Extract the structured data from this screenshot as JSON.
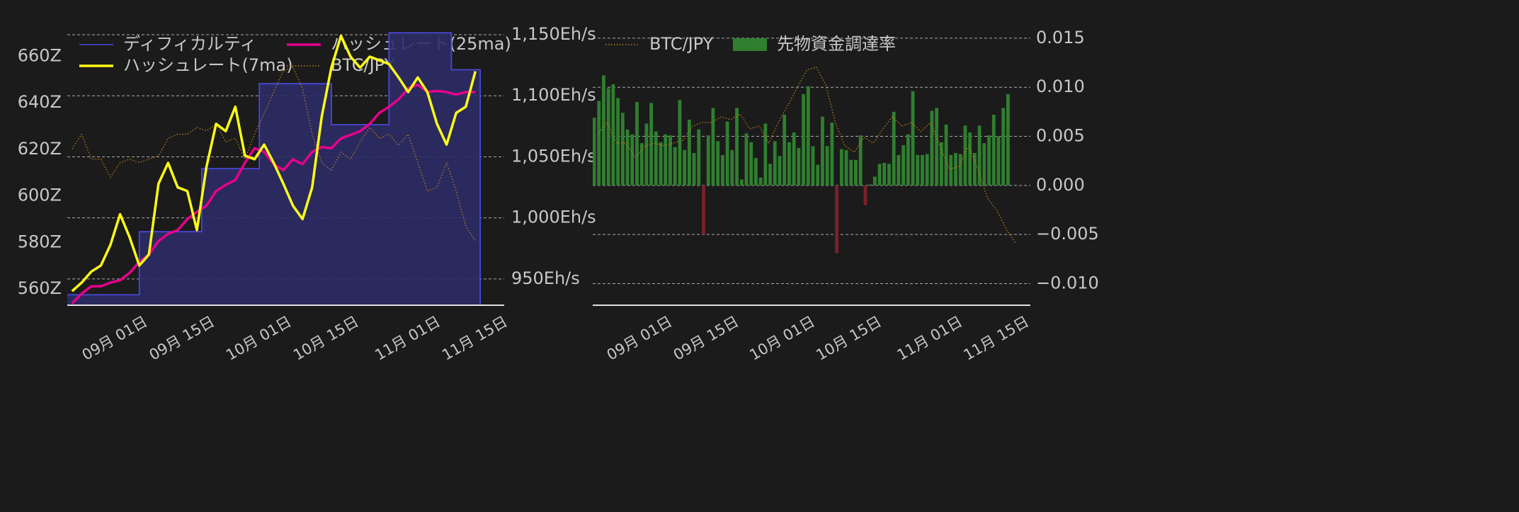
{
  "chart_data": [
    {
      "type": "line",
      "legend": "upper left",
      "legend_columns": 2,
      "grid": true,
      "xlim": [
        "08-17",
        "11-16"
      ],
      "xticks": [
        {
          "value": "09-01",
          "label": "09月 01日"
        },
        {
          "value": "09-15",
          "label": "09月 15日"
        },
        {
          "value": "10-01",
          "label": "10月 01日"
        },
        {
          "value": "10-15",
          "label": "10月 15日"
        },
        {
          "value": "11-01",
          "label": "11月 01日"
        },
        {
          "value": "11-15",
          "label": "11月 15日"
        }
      ],
      "ylim": [
        553,
        672
      ],
      "yticks": [
        {
          "value": 560,
          "label": "560Z"
        },
        {
          "value": 580,
          "label": "580Z"
        },
        {
          "value": 600,
          "label": "600Z"
        },
        {
          "value": 620,
          "label": "620Z"
        },
        {
          "value": 640,
          "label": "640Z"
        },
        {
          "value": 660,
          "label": "660Z"
        }
      ],
      "y2lim": [
        928.5,
        1155.2
      ],
      "y2ticks": [
        {
          "value": 950,
          "label": "950Eh/s"
        },
        {
          "value": 1000,
          "label": "1,000Eh/s"
        },
        {
          "value": 1050,
          "label": "1,050Eh/s"
        },
        {
          "value": 1100,
          "label": "1,100Eh/s"
        },
        {
          "value": 1150,
          "label": "1,150Eh/s"
        }
      ],
      "y3lim": [
        14.5,
        18.5
      ],
      "x": [
        "08-18",
        "08-20",
        "08-22",
        "08-24",
        "08-26",
        "08-28",
        "08-30",
        "09-01",
        "09-03",
        "09-05",
        "09-07",
        "09-09",
        "09-11",
        "09-13",
        "09-15",
        "09-17",
        "09-19",
        "09-21",
        "09-23",
        "09-25",
        "09-27",
        "09-29",
        "10-01",
        "10-03",
        "10-05",
        "10-07",
        "10-09",
        "10-11",
        "10-13",
        "10-15",
        "10-17",
        "10-19",
        "10-21",
        "10-23",
        "10-25",
        "10-27",
        "10-29",
        "10-31",
        "11-02",
        "11-04",
        "11-06",
        "11-08",
        "11-10"
      ],
      "series": [
        {
          "name": "ディフィカルティ",
          "type": "step-area",
          "color": "#4848d8",
          "fill": "#2c2c66",
          "x": [
            "08-17",
            "09-01",
            "09-14",
            "09-26",
            "10-11",
            "10-23",
            "11-05",
            "11-11"
          ],
          "values": [
            557.5,
            584.6,
            611.7,
            648.2,
            630.6,
            670.1,
            654.2,
            654.2
          ]
        },
        {
          "name": "ハッシュレート(7ma)",
          "color": "#ffff14",
          "axis": "y2",
          "values": [
            940,
            947,
            956,
            961,
            978,
            1003,
            984,
            961,
            970,
            1028,
            1045,
            1025,
            1022,
            990,
            1042,
            1077,
            1071,
            1091,
            1051,
            1048,
            1060,
            1045,
            1028,
            1010,
            999,
            1025,
            1083,
            1123,
            1149,
            1132,
            1123,
            1132,
            1129,
            1126,
            1115,
            1103,
            1115,
            1103,
            1077,
            1060,
            1086,
            1091,
            1120
          ]
        },
        {
          "name": "ハッシュレート(25ma)",
          "color": "#e8008c",
          "axis": "y2",
          "values": [
            930,
            938,
            944,
            944,
            947,
            949,
            955,
            964,
            970,
            981,
            987,
            990,
            999,
            1005,
            1010,
            1022,
            1027,
            1031,
            1045,
            1057,
            1054,
            1044,
            1039,
            1048,
            1044,
            1054,
            1058,
            1057,
            1065,
            1068,
            1071,
            1077,
            1086,
            1091,
            1097,
            1106,
            1109,
            1103,
            1104,
            1103,
            1101,
            1103,
            1103
          ]
        },
        {
          "name": "BTC/JPY",
          "color": "#c0801a",
          "axis": "y3",
          "linestyle": "dotted",
          "values": [
            16.76,
            16.97,
            16.61,
            16.61,
            16.35,
            16.56,
            16.61,
            16.56,
            16.61,
            16.66,
            16.91,
            16.97,
            16.97,
            17.07,
            17.02,
            17.12,
            16.86,
            16.91,
            16.61,
            16.97,
            17.27,
            17.58,
            17.89,
            17.94,
            17.63,
            16.97,
            16.56,
            16.45,
            16.71,
            16.61,
            16.86,
            17.07,
            16.91,
            16.97,
            16.81,
            16.97,
            16.56,
            16.15,
            16.2,
            16.56,
            16.15,
            15.64,
            15.43
          ]
        }
      ]
    },
    {
      "type": "bar",
      "legend": "upper left",
      "legend_columns": 2,
      "grid": true,
      "y_side": "right",
      "xlim": [
        "08-17",
        "11-17"
      ],
      "xticks": [
        {
          "value": "09-01",
          "label": "09月 01日"
        },
        {
          "value": "09-15",
          "label": "09月 15日"
        },
        {
          "value": "10-01",
          "label": "10月 01日"
        },
        {
          "value": "10-15",
          "label": "10月 15日"
        },
        {
          "value": "11-01",
          "label": "11月 01日"
        },
        {
          "value": "11-15",
          "label": "11月 15日"
        }
      ],
      "ylim": [
        -0.0122,
        0.016
      ],
      "yticks": [
        {
          "value": -0.01,
          "label": "−0.010"
        },
        {
          "value": -0.005,
          "label": "−0.005"
        },
        {
          "value": 0,
          "label": "0.000"
        },
        {
          "value": 0.005,
          "label": "0.005"
        },
        {
          "value": 0.01,
          "label": "0.010"
        },
        0.015
      ],
      "y3lim": [
        13.77,
        18.62
      ],
      "x": [
        "08-17",
        "08-18",
        "08-19",
        "08-20",
        "08-21",
        "08-22",
        "08-23",
        "08-24",
        "08-25",
        "08-26",
        "08-27",
        "08-28",
        "08-29",
        "08-30",
        "08-31",
        "09-01",
        "09-02",
        "09-03",
        "09-04",
        "09-05",
        "09-06",
        "09-07",
        "09-08",
        "09-09",
        "09-10",
        "09-11",
        "09-12",
        "09-13",
        "09-14",
        "09-15",
        "09-16",
        "09-17",
        "09-18",
        "09-19",
        "09-20",
        "09-21",
        "09-22",
        "09-23",
        "09-24",
        "09-25",
        "09-26",
        "09-27",
        "09-28",
        "09-29",
        "09-30",
        "10-01",
        "10-02",
        "10-03",
        "10-04",
        "10-05",
        "10-06",
        "10-07",
        "10-08",
        "10-09",
        "10-10",
        "10-11",
        "10-12",
        "10-13",
        "10-14",
        "10-15",
        "10-16",
        "10-17",
        "10-18",
        "10-19",
        "10-20",
        "10-21",
        "10-22",
        "10-23",
        "10-24",
        "10-25",
        "10-26",
        "10-27",
        "10-28",
        "10-29",
        "10-30",
        "10-31",
        "11-01",
        "11-02",
        "11-03",
        "11-04",
        "11-05",
        "11-06",
        "11-07",
        "11-08",
        "11-09",
        "11-10",
        "11-11",
        "11-12"
      ],
      "series": [
        {
          "name": "BTC/JPY",
          "type": "line",
          "color": "#c0801a",
          "axis": "y3",
          "linestyle": "dotted",
          "x": [
            "08-18",
            "08-20",
            "08-22",
            "08-24",
            "08-26",
            "08-28",
            "08-30",
            "09-01",
            "09-03",
            "09-05",
            "09-07",
            "09-09",
            "09-11",
            "09-13",
            "09-15",
            "09-17",
            "09-19",
            "09-21",
            "09-23",
            "09-25",
            "09-27",
            "09-29",
            "10-01",
            "10-03",
            "10-05",
            "10-07",
            "10-09",
            "10-11",
            "10-13",
            "10-15",
            "10-17",
            "10-19",
            "10-21",
            "10-23",
            "10-25",
            "10-27",
            "10-29",
            "10-31",
            "11-02",
            "11-04",
            "11-06",
            "11-08",
            "11-10",
            "11-12",
            "11-14"
          ],
          "values": [
            16.76,
            16.97,
            16.61,
            16.61,
            16.35,
            16.56,
            16.61,
            16.56,
            16.61,
            16.66,
            16.91,
            16.97,
            16.97,
            17.07,
            17.02,
            17.12,
            16.86,
            16.91,
            16.61,
            16.97,
            17.27,
            17.58,
            17.89,
            17.94,
            17.63,
            16.97,
            16.56,
            16.45,
            16.71,
            16.61,
            16.86,
            17.07,
            16.91,
            16.97,
            16.81,
            16.97,
            16.56,
            16.15,
            16.2,
            16.56,
            16.15,
            15.64,
            15.43,
            15.09,
            14.85
          ]
        },
        {
          "name": "先物資金調達率",
          "type": "bar",
          "color": "#2f7f2f",
          "negative_color": "#7d1f2c",
          "values": [
            0.0069,
            0.0086,
            0.0112,
            0.0099,
            0.0103,
            0.0089,
            0.0074,
            0.0057,
            0.0052,
            0.0085,
            0.0043,
            0.0063,
            0.0084,
            0.0055,
            0.0044,
            0.0052,
            0.0051,
            0.0039,
            0.0087,
            0.0036,
            0.0067,
            0.0033,
            0.0057,
            -0.005,
            0.0051,
            0.0079,
            0.0045,
            0.0031,
            0.0065,
            0.0036,
            0.0079,
            0.0006,
            0.0053,
            0.0044,
            0.0028,
            0.0008,
            0.0063,
            0.0022,
            0.0045,
            0.003,
            0.0072,
            0.0044,
            0.0054,
            0.0038,
            0.0093,
            0.0101,
            0.004,
            0.0021,
            0.007,
            0.004,
            0.0064,
            -0.0069,
            0.0037,
            0.0036,
            0.0026,
            0.0026,
            0.0051,
            -0.002,
            0.0001,
            0.0009,
            0.0022,
            0.0023,
            0.0022,
            0.0075,
            0.0031,
            0.0041,
            0.0052,
            0.0096,
            0.0031,
            0.0031,
            0.0032,
            0.0076,
            0.0079,
            0.0044,
            0.0062,
            0.0031,
            0.0033,
            0.0032,
            0.0061,
            0.0054,
            0.0033,
            0.0061,
            0.0043,
            0.0051,
            0.0072,
            0.005,
            0.0079,
            0.0093
          ]
        }
      ]
    }
  ]
}
